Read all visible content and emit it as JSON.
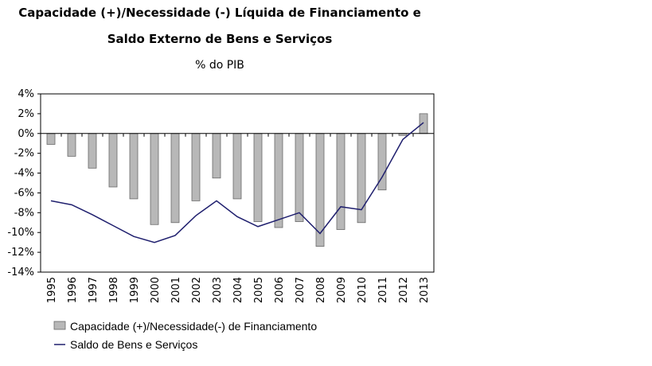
{
  "chart_data": {
    "type": "bar",
    "title_line1": "Capacidade (+)/Necessidade (-) Líquida de Financiamento e",
    "title_line2": "Saldo Externo de Bens e Serviços",
    "subtitle": "% do PIB",
    "categories": [
      "1995",
      "1996",
      "1997",
      "1998",
      "1999",
      "2000",
      "2001",
      "2002",
      "2003",
      "2004",
      "2005",
      "2006",
      "2007",
      "2008",
      "2009",
      "2010",
      "2011",
      "2012",
      "2013"
    ],
    "ylim": [
      -14,
      4
    ],
    "yticks": [
      {
        "value": 4,
        "label": "4%"
      },
      {
        "value": 2,
        "label": "2%"
      },
      {
        "value": 0,
        "label": "0%"
      },
      {
        "value": -2,
        "label": "-2%"
      },
      {
        "value": -4,
        "label": "-4%"
      },
      {
        "value": -6,
        "label": "-6%"
      },
      {
        "value": -8,
        "label": "-8%"
      },
      {
        "value": -10,
        "label": "-10%"
      },
      {
        "value": -12,
        "label": "-12%"
      },
      {
        "value": -14,
        "label": "-14%"
      }
    ],
    "grid": false,
    "legend_position": "bottom-left",
    "series": [
      {
        "name": "Capacidade (+)/Necessidade(-) de Financiamento",
        "kind": "bar",
        "color": "#b8b8b8",
        "values": [
          -1.1,
          -2.3,
          -3.5,
          -5.4,
          -6.6,
          -9.2,
          -9.0,
          -6.8,
          -4.5,
          -6.6,
          -8.9,
          -9.5,
          -8.9,
          -11.4,
          -9.7,
          -9.0,
          -5.7,
          -0.2,
          2.0
        ]
      },
      {
        "name": "Saldo de Bens e Serviços",
        "kind": "line",
        "color": "#1f1f6e",
        "values": [
          -6.8,
          -7.2,
          -8.2,
          -9.3,
          -10.4,
          -11.0,
          -10.3,
          -8.3,
          -6.8,
          -8.4,
          -9.4,
          -8.7,
          -8.0,
          -10.1,
          -7.4,
          -7.7,
          -4.4,
          -0.6,
          1.1
        ]
      }
    ]
  }
}
